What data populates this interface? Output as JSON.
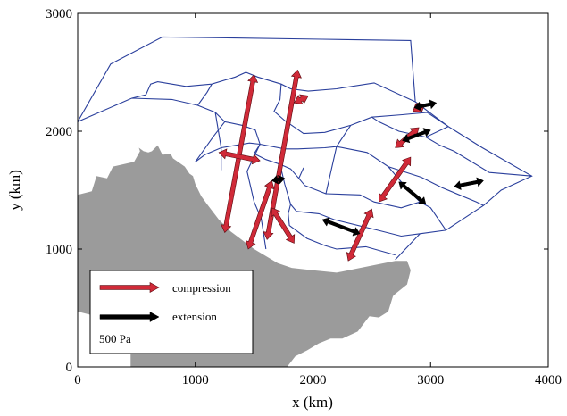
{
  "chart_data": {
    "type": "scatter",
    "xlabel": "x (km)",
    "ylabel": "y (km)",
    "xlim": [
      0,
      4000
    ],
    "ylim": [
      0,
      3000
    ],
    "x_ticks": [
      "0",
      "1000",
      "2000",
      "3000",
      "4000"
    ],
    "y_ticks": [
      "0",
      "1000",
      "2000",
      "3000"
    ],
    "grid": false,
    "colors": {
      "compression": "#d02a38",
      "extension": "#000000",
      "block_lines": "#2a3f9c",
      "landmass": "#9b9b9b"
    },
    "landmass": [
      [
        0,
        1460
      ],
      [
        120,
        1490
      ],
      [
        160,
        1620
      ],
      [
        250,
        1600
      ],
      [
        300,
        1700
      ],
      [
        480,
        1740
      ],
      [
        530,
        1830
      ],
      [
        520,
        1860
      ],
      [
        560,
        1830
      ],
      [
        600,
        1820
      ],
      [
        630,
        1830
      ],
      [
        680,
        1880
      ],
      [
        720,
        1800
      ],
      [
        790,
        1810
      ],
      [
        810,
        1770
      ],
      [
        910,
        1700
      ],
      [
        950,
        1640
      ],
      [
        980,
        1620
      ],
      [
        1000,
        1550
      ],
      [
        1050,
        1450
      ],
      [
        1100,
        1380
      ],
      [
        1200,
        1250
      ],
      [
        1300,
        1150
      ],
      [
        1500,
        1000
      ],
      [
        1700,
        880
      ],
      [
        1820,
        840
      ],
      [
        2000,
        820
      ],
      [
        2200,
        800
      ],
      [
        2500,
        860
      ],
      [
        2700,
        900
      ],
      [
        2800,
        900
      ],
      [
        2830,
        820
      ],
      [
        2800,
        700
      ],
      [
        2700,
        620
      ],
      [
        2680,
        600
      ],
      [
        2640,
        470
      ],
      [
        2560,
        420
      ],
      [
        2480,
        430
      ],
      [
        2380,
        300
      ],
      [
        2250,
        240
      ],
      [
        2150,
        240
      ],
      [
        2050,
        200
      ],
      [
        1950,
        140
      ],
      [
        1850,
        90
      ],
      [
        1780,
        0
      ],
      [
        450,
        0
      ],
      [
        450,
        200
      ],
      [
        350,
        230
      ],
      [
        250,
        320
      ],
      [
        200,
        420
      ],
      [
        0,
        470
      ]
    ],
    "blocks": [
      [
        [
          0,
          2080
        ],
        [
          280,
          2570
        ],
        [
          720,
          2800
        ],
        [
          2080,
          2780
        ],
        [
          2830,
          2770
        ],
        [
          2870,
          2250
        ]
      ],
      [
        [
          0,
          2080
        ],
        [
          460,
          2280
        ],
        [
          800,
          2270
        ],
        [
          1020,
          2220
        ],
        [
          1170,
          2160
        ],
        [
          1250,
          2080
        ],
        [
          1400,
          2050
        ],
        [
          1510,
          2010
        ],
        [
          1550,
          1890
        ]
      ],
      [
        [
          460,
          2280
        ],
        [
          580,
          2310
        ],
        [
          620,
          2400
        ],
        [
          680,
          2420
        ],
        [
          800,
          2400
        ],
        [
          920,
          2380
        ],
        [
          1140,
          2400
        ],
        [
          1340,
          2460
        ],
        [
          1430,
          2500
        ],
        [
          1530,
          2460
        ],
        [
          1730,
          2400
        ],
        [
          1810,
          2360
        ],
        [
          1960,
          2340
        ],
        [
          2200,
          2360
        ],
        [
          2520,
          2410
        ],
        [
          2870,
          2250
        ]
      ],
      [
        [
          2870,
          2250
        ],
        [
          3150,
          2040
        ],
        [
          3440,
          1860
        ],
        [
          3860,
          1620
        ],
        [
          3600,
          1500
        ],
        [
          3450,
          1370
        ],
        [
          3130,
          1160
        ],
        [
          2910,
          1130
        ],
        [
          2700,
          910
        ]
      ],
      [
        [
          1220,
          1670
        ],
        [
          1220,
          1860
        ],
        [
          1170,
          2160
        ]
      ],
      [
        [
          1020,
          2220
        ],
        [
          1100,
          2330
        ],
        [
          1140,
          2400
        ]
      ],
      [
        [
          1000,
          1740
        ],
        [
          1150,
          1950
        ],
        [
          1250,
          2080
        ]
      ],
      [
        [
          1000,
          1740
        ],
        [
          1080,
          1800
        ],
        [
          1220,
          1860
        ],
        [
          1460,
          1900
        ],
        [
          1550,
          1890
        ]
      ],
      [
        [
          1550,
          1890
        ],
        [
          1500,
          1810
        ],
        [
          1600,
          1760
        ],
        [
          1720,
          1720
        ],
        [
          1810,
          1680
        ],
        [
          1880,
          1600
        ],
        [
          1930,
          1540
        ]
      ],
      [
        [
          1550,
          1890
        ],
        [
          1760,
          1850
        ],
        [
          1870,
          1850
        ],
        [
          2100,
          1860
        ],
        [
          2200,
          1870
        ]
      ],
      [
        [
          1730,
          2400
        ],
        [
          1720,
          2270
        ],
        [
          1670,
          2170
        ],
        [
          1760,
          2090
        ],
        [
          1820,
          2050
        ],
        [
          1920,
          1980
        ],
        [
          2100,
          1990
        ],
        [
          2320,
          2050
        ],
        [
          2500,
          2120
        ],
        [
          2760,
          2140
        ],
        [
          2970,
          2160
        ],
        [
          3150,
          2040
        ]
      ],
      [
        [
          2500,
          2120
        ],
        [
          2560,
          2080
        ],
        [
          2730,
          2000
        ],
        [
          2960,
          1950
        ],
        [
          3150,
          2040
        ]
      ],
      [
        [
          2200,
          1870
        ],
        [
          2320,
          2050
        ]
      ],
      [
        [
          2200,
          1870
        ],
        [
          2110,
          1470
        ],
        [
          1930,
          1540
        ]
      ],
      [
        [
          2960,
          1950
        ],
        [
          3080,
          1880
        ],
        [
          3200,
          1830
        ],
        [
          3500,
          1650
        ],
        [
          3860,
          1620
        ]
      ],
      [
        [
          2200,
          1870
        ],
        [
          2460,
          1820
        ],
        [
          2640,
          1700
        ],
        [
          2920,
          1610
        ],
        [
          3100,
          1520
        ],
        [
          3390,
          1400
        ],
        [
          3450,
          1370
        ]
      ],
      [
        [
          2640,
          1700
        ],
        [
          2810,
          1500
        ],
        [
          2910,
          1400
        ],
        [
          3000,
          1350
        ],
        [
          3130,
          1160
        ]
      ],
      [
        [
          2110,
          1470
        ],
        [
          2400,
          1460
        ],
        [
          2520,
          1400
        ],
        [
          2750,
          1350
        ],
        [
          2910,
          1400
        ]
      ],
      [
        [
          1920,
          1690
        ],
        [
          1880,
          1600
        ]
      ],
      [
        [
          1720,
          1720
        ],
        [
          1760,
          1550
        ],
        [
          1810,
          1380
        ],
        [
          1860,
          1320
        ],
        [
          2050,
          1300
        ],
        [
          2180,
          1250
        ],
        [
          2550,
          1160
        ],
        [
          2750,
          1110
        ],
        [
          2910,
          1130
        ]
      ],
      [
        [
          1810,
          1380
        ],
        [
          1790,
          1300
        ],
        [
          1800,
          1200
        ],
        [
          1950,
          1090
        ],
        [
          2100,
          1030
        ],
        [
          2200,
          1000
        ],
        [
          2450,
          1020
        ],
        [
          2700,
          950
        ]
      ],
      [
        [
          1550,
          1890
        ],
        [
          1440,
          1660
        ],
        [
          1500,
          1400
        ],
        [
          1560,
          1260
        ],
        [
          1580,
          1130
        ],
        [
          1600,
          1000
        ]
      ]
    ],
    "compression_arrows": [
      [
        1250,
        1140,
        1500,
        2480
      ],
      [
        1200,
        1820,
        1550,
        1750
      ],
      [
        1450,
        1000,
        1650,
        1580
      ],
      [
        1610,
        1080,
        1870,
        2520
      ],
      [
        1650,
        1350,
        1840,
        1050
      ],
      [
        1840,
        2240,
        1960,
        2300
      ],
      [
        2300,
        900,
        2500,
        1340
      ],
      [
        2850,
        2170,
        2950,
        2230
      ],
      [
        2700,
        1860,
        2900,
        2030
      ],
      [
        2560,
        1400,
        2830,
        1780
      ]
    ],
    "extension_arrows": [
      [
        1760,
        1600,
        1650,
        1580
      ],
      [
        2080,
        1250,
        2400,
        1130
      ],
      [
        2730,
        1570,
        2960,
        1380
      ],
      [
        2760,
        1920,
        3000,
        2010
      ],
      [
        2860,
        2200,
        3050,
        2240
      ],
      [
        3200,
        1530,
        3450,
        1580
      ]
    ],
    "legend": {
      "entries": [
        "compression",
        "extension"
      ],
      "scale_label": "500 Pa",
      "placement": "bottom-left"
    }
  }
}
